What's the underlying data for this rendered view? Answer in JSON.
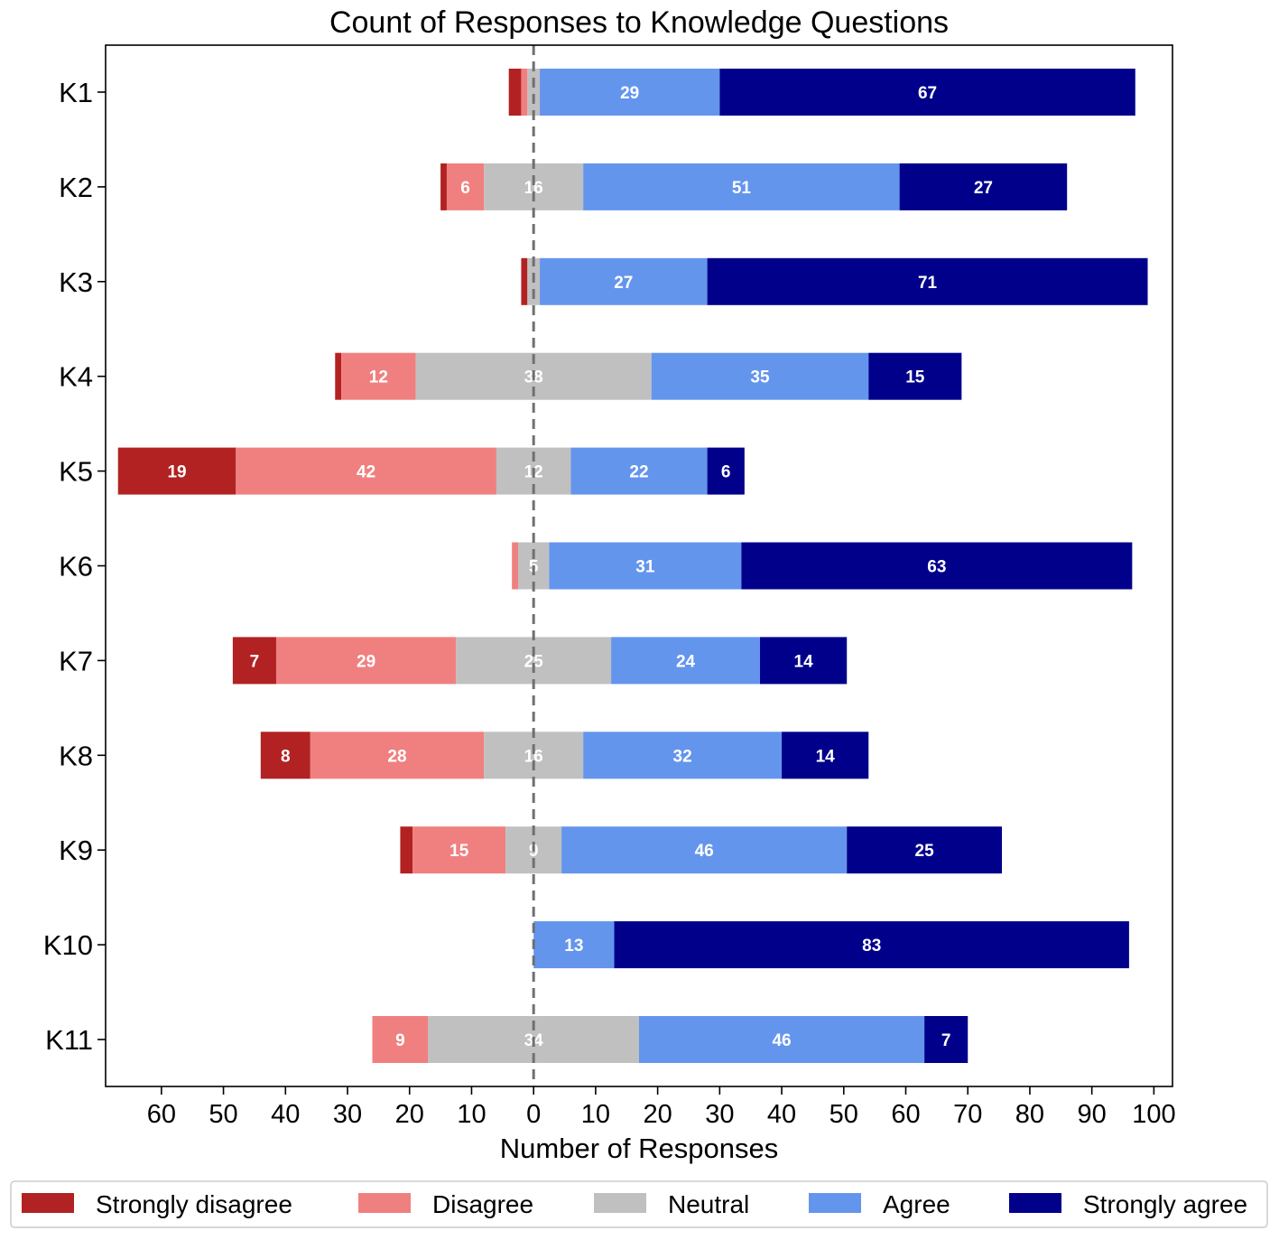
{
  "chart_data": {
    "type": "bar",
    "orientation": "horizontal-diverging-stacked",
    "title": "Count of Responses to Knowledge Questions",
    "xlabel": "Number of Responses",
    "ylabel": "",
    "xlim": [
      -69,
      103
    ],
    "xticks": [
      -60,
      -50,
      -40,
      -30,
      -20,
      -10,
      0,
      10,
      20,
      30,
      40,
      50,
      60,
      70,
      80,
      90,
      100
    ],
    "xtick_labels": [
      "60",
      "50",
      "40",
      "30",
      "20",
      "10",
      "0",
      "10",
      "20",
      "30",
      "40",
      "50",
      "60",
      "70",
      "80",
      "90",
      "100"
    ],
    "zero_line": "dashed",
    "grid": false,
    "legend_position": "bottom",
    "categories": [
      "K1",
      "K2",
      "K3",
      "K4",
      "K5",
      "K6",
      "K7",
      "K8",
      "K9",
      "K10",
      "K11"
    ],
    "series": [
      {
        "name": "Strongly disagree",
        "color": "#b22222",
        "values": [
          2,
          1,
          1,
          1,
          19,
          0,
          7,
          8,
          2,
          0,
          0
        ]
      },
      {
        "name": "Disagree",
        "color": "#f08080",
        "values": [
          1,
          6,
          0,
          12,
          42,
          1,
          29,
          28,
          15,
          0,
          9
        ]
      },
      {
        "name": "Neutral",
        "color": "#c0c0c0",
        "values": [
          2,
          16,
          2,
          38,
          12,
          5,
          25,
          16,
          9,
          0,
          34
        ]
      },
      {
        "name": "Agree",
        "color": "#6495ed",
        "values": [
          29,
          51,
          27,
          35,
          22,
          31,
          24,
          32,
          46,
          13,
          46
        ]
      },
      {
        "name": "Strongly agree",
        "color": "#00008b",
        "values": [
          67,
          27,
          71,
          15,
          6,
          63,
          14,
          14,
          25,
          83,
          7
        ]
      }
    ],
    "label_min_value": 5
  }
}
